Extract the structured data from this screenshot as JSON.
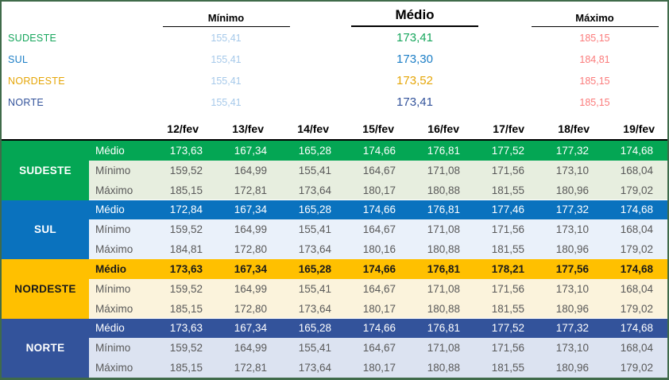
{
  "summary": {
    "min_header": "Mínimo",
    "avg_header": "Médio",
    "max_header": "Máximo",
    "min_value_color": "#A6C9EA",
    "max_value_color": "#FB7B7B",
    "rows": [
      {
        "region": "SUDESTE",
        "min": "155,41",
        "avg": "173,41",
        "max": "185,15",
        "color": "#16A65C"
      },
      {
        "region": "SUL",
        "min": "155,41",
        "avg": "173,30",
        "max": "184,81",
        "color": "#1C7EC6"
      },
      {
        "region": "NORDESTE",
        "min": "155,41",
        "avg": "173,52",
        "max": "185,15",
        "color": "#E5A608"
      },
      {
        "region": "NORTE",
        "min": "155,41",
        "avg": "173,41",
        "max": "185,15",
        "color": "#33539B"
      }
    ]
  },
  "table": {
    "date_columns": [
      "12/fev",
      "13/fev",
      "14/fev",
      "15/fev",
      "16/fev",
      "17/fev",
      "18/fev",
      "19/fev"
    ],
    "row_labels": {
      "avg": "Médio",
      "min": "Mínimo",
      "max": "Máximo"
    },
    "light_text_color": "#595959",
    "blocks": [
      {
        "region": "SUDESTE",
        "accent": "#04A654",
        "light": "#E7EEDF",
        "label_text": "#FFFFFF",
        "avg_text": "#FFFFFF",
        "avg_bold": false,
        "avg": [
          "173,63",
          "167,34",
          "165,28",
          "174,66",
          "176,81",
          "177,52",
          "177,32",
          "174,68"
        ],
        "min": [
          "159,52",
          "164,99",
          "155,41",
          "164,67",
          "171,08",
          "171,56",
          "173,10",
          "168,04"
        ],
        "max": [
          "185,15",
          "172,81",
          "173,64",
          "180,17",
          "180,88",
          "181,55",
          "180,96",
          "179,02"
        ]
      },
      {
        "region": "SUL",
        "accent": "#0A72BE",
        "light": "#EAF1FA",
        "label_text": "#FFFFFF",
        "avg_text": "#FFFFFF",
        "avg_bold": false,
        "avg": [
          "172,84",
          "167,34",
          "165,28",
          "174,66",
          "176,81",
          "177,46",
          "177,32",
          "174,68"
        ],
        "min": [
          "159,52",
          "164,99",
          "155,41",
          "164,67",
          "171,08",
          "171,56",
          "173,10",
          "168,04"
        ],
        "max": [
          "184,81",
          "172,80",
          "173,64",
          "180,16",
          "180,88",
          "181,55",
          "180,96",
          "179,02"
        ]
      },
      {
        "region": "NORDESTE",
        "accent": "#FFC000",
        "light": "#FBF3DC",
        "label_text": "#1A1A1A",
        "avg_text": "#1A1A1A",
        "avg_bold": true,
        "avg": [
          "173,63",
          "167,34",
          "165,28",
          "174,66",
          "176,81",
          "178,21",
          "177,56",
          "174,68"
        ],
        "min": [
          "159,52",
          "164,99",
          "155,41",
          "164,67",
          "171,08",
          "171,56",
          "173,10",
          "168,04"
        ],
        "max": [
          "185,15",
          "172,80",
          "173,64",
          "180,17",
          "180,88",
          "181,55",
          "180,96",
          "179,02"
        ]
      },
      {
        "region": "NORTE",
        "accent": "#33539B",
        "light": "#DCE3F1",
        "label_text": "#FFFFFF",
        "avg_text": "#FFFFFF",
        "avg_bold": false,
        "avg": [
          "173,63",
          "167,34",
          "165,28",
          "174,66",
          "176,81",
          "177,52",
          "177,32",
          "174,68"
        ],
        "min": [
          "159,52",
          "164,99",
          "155,41",
          "164,67",
          "171,08",
          "171,56",
          "173,10",
          "168,04"
        ],
        "max": [
          "185,15",
          "172,81",
          "173,64",
          "180,17",
          "180,88",
          "181,55",
          "180,96",
          "179,02"
        ]
      }
    ]
  },
  "frame": {
    "border_color": "#406B4A"
  }
}
